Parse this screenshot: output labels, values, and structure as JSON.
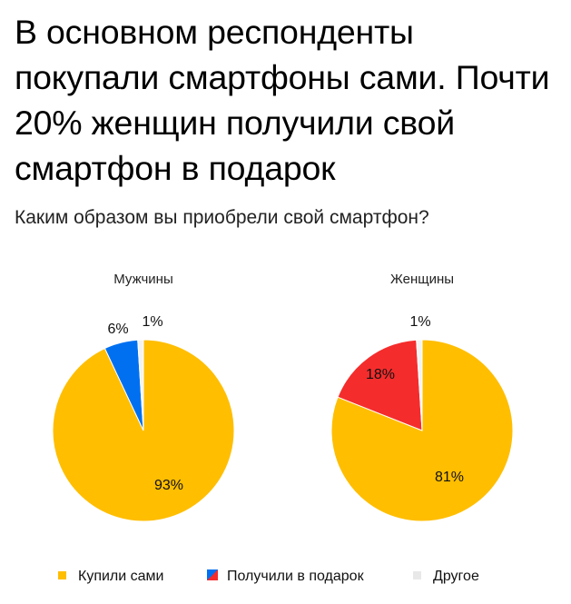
{
  "title": "В основном респонденты покупали смартфоны сами. Почти 20% женщин получили свой смартфон в подарок",
  "subtitle": "Каким образом вы приобрели свой смартфон?",
  "colors": {
    "bought_self": "#FFBE00",
    "gift_men": "#0070F0",
    "gift_women": "#F52C2C",
    "other": "#F2F2F2"
  },
  "chart_data": [
    {
      "type": "pie",
      "title": "Мужчины",
      "categories": [
        "Купили сами",
        "Получили в подарок",
        "Другое"
      ],
      "values": [
        93,
        6,
        1
      ],
      "labels": [
        "93%",
        "6%",
        "1%"
      ],
      "colors": [
        "#FFBE00",
        "#0070F0",
        "#F2F2F2"
      ]
    },
    {
      "type": "pie",
      "title": "Женщины",
      "categories": [
        "Купили сами",
        "Получили в подарок",
        "Другое"
      ],
      "values": [
        81,
        18,
        1
      ],
      "labels": [
        "81%",
        "18%",
        "1%"
      ],
      "colors": [
        "#FFBE00",
        "#F52C2C",
        "#F2F2F2"
      ]
    }
  ],
  "legend": [
    {
      "label": "Купили сами",
      "icon": "yellow-square"
    },
    {
      "label": "Получили в подарок",
      "icon": "blue-red-split-square"
    },
    {
      "label": "Другое",
      "icon": "grey-square"
    }
  ],
  "legend_position": "bottom"
}
